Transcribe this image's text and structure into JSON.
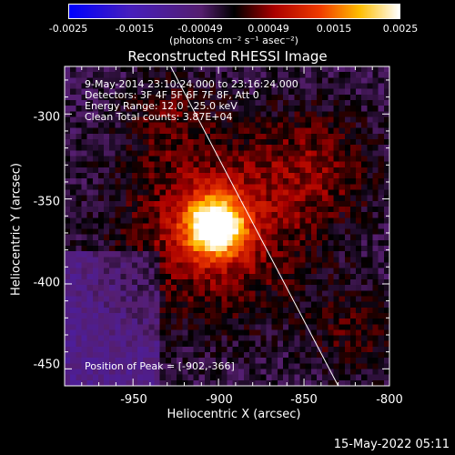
{
  "colorbar": {
    "ticks": [
      "-0.0025",
      "-0.0015",
      "-0.00049",
      "0.00049",
      "0.0015",
      "0.0025"
    ],
    "unit_label": "(photons cm⁻² s⁻¹ asec⁻²)",
    "range": [
      -0.0025,
      0.0025
    ]
  },
  "chart_data": {
    "type": "heatmap",
    "title": "Reconstructed RHESSI Image",
    "xlabel": "Heliocentric X (arcsec)",
    "ylabel": "Heliocentric Y (arcsec)",
    "xlim": [
      -990,
      -800
    ],
    "ylim": [
      -460,
      -272
    ],
    "xticks": [
      "-950",
      "-900",
      "-850",
      "-800"
    ],
    "yticks": [
      "-300",
      "-350",
      "-400",
      "-450"
    ],
    "annotations": [
      "9-May-2014 23:10:24.000 to 23:16:24.000",
      "Detectors: 3F 4F 5F 6F 7F 8F, Att 0",
      "Energy Range: 12.0 - 25.0 keV",
      "Clean    Total counts: 3.87E+04"
    ],
    "peak_label": "Position of Peak = [-902,-366]",
    "peak_position": [
      -902,
      -366
    ],
    "limb_line": [
      [
        -928,
        -272
      ],
      [
        -830,
        -460
      ]
    ]
  },
  "footer": {
    "timestamp": "15-May-2022 05:11"
  },
  "colors": {
    "background": "#000000",
    "axis": "#ffffff",
    "limb": "#ffffff"
  }
}
